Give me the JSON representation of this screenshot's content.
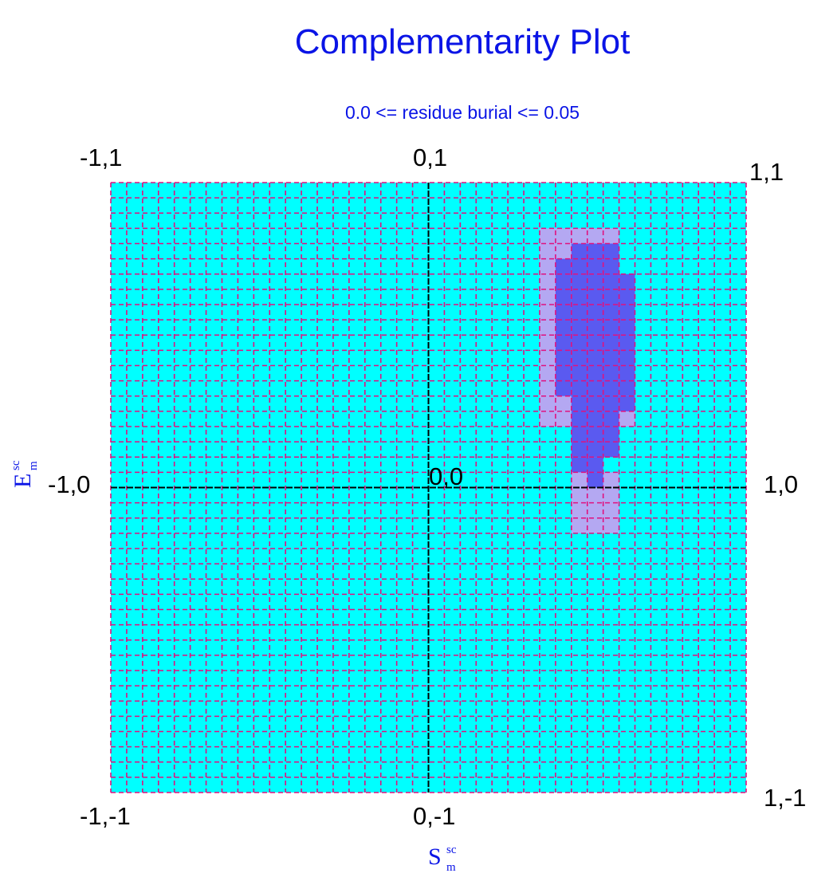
{
  "title": "Complementarity Plot",
  "subtitle": "0.0 <= residue burial <= 0.05",
  "corner_labels": {
    "top_left": "-1,1",
    "top_center": "0,1",
    "top_right": "1,1",
    "mid_left": "-1,0",
    "center": "0,0",
    "mid_right": "1,0",
    "bottom_left": "-1,-1",
    "bottom_center": "0,-1",
    "bottom_right": "1,-1"
  },
  "xlabel": {
    "main": "S",
    "sup": "sc",
    "sub": "m"
  },
  "ylabel": {
    "main": "E",
    "sup": "sc",
    "sub": "m"
  },
  "colors": {
    "background": "#00ffff",
    "grid": "#e0117f",
    "axes": "#000000",
    "level1": "#b4a8f2",
    "level2": "#5a5af0",
    "text": "#0a14e6"
  },
  "chart_data": {
    "type": "heatmap",
    "title": "Complementarity Plot",
    "subtitle": "0.0 <= residue burial <= 0.05",
    "xlabel": "S_m^sc",
    "ylabel": "E_m^sc",
    "xlim": [
      -1,
      1
    ],
    "ylim": [
      -1,
      1
    ],
    "bin_size": 0.05,
    "grid": true,
    "note": "Cells list [x_min, x_max, y_min, y_max] in data units; level 1 = light violet, level 2 = dark blue; all other cells = background",
    "level1_cells": [
      [
        0.35,
        0.6,
        0.6,
        0.85
      ],
      [
        0.35,
        0.45,
        0.2,
        0.6
      ],
      [
        0.55,
        0.65,
        0.2,
        0.6
      ],
      [
        0.45,
        0.55,
        0.05,
        0.15
      ],
      [
        0.45,
        0.6,
        -0.15,
        0.05
      ]
    ],
    "level2_cells": [
      [
        0.4,
        0.45,
        0.3,
        0.75
      ],
      [
        0.45,
        0.6,
        0.2,
        0.8
      ],
      [
        0.6,
        0.65,
        0.3,
        0.7
      ],
      [
        0.45,
        0.6,
        0.1,
        0.2
      ],
      [
        0.6,
        0.65,
        0.25,
        0.3
      ],
      [
        0.45,
        0.55,
        0.05,
        0.1
      ],
      [
        0.5,
        0.55,
        0.0,
        0.05
      ]
    ]
  }
}
